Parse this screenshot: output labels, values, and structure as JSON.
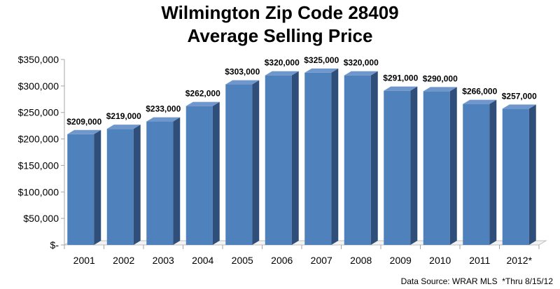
{
  "chart_data": {
    "type": "bar",
    "title": "Wilmington Zip Code 28409",
    "subtitle": "Average Selling Price",
    "xlabel": "",
    "ylabel": "",
    "categories": [
      "2001",
      "2002",
      "2003",
      "2004",
      "2005",
      "2006",
      "2007",
      "2008",
      "2009",
      "2010",
      "2011",
      "2012*"
    ],
    "values": [
      209000,
      219000,
      233000,
      262000,
      303000,
      320000,
      325000,
      320000,
      291000,
      290000,
      266000,
      257000
    ],
    "data_labels": [
      "$209,000",
      "$219,000",
      "$233,000",
      "$262,000",
      "$303,000",
      "$320,000",
      "$325,000",
      "$320,000",
      "$291,000",
      "$290,000",
      "$266,000",
      "$257,000"
    ],
    "ylim": [
      0,
      350000
    ],
    "yticks": [
      0,
      50000,
      100000,
      150000,
      200000,
      250000,
      300000,
      350000
    ],
    "ytick_labels": [
      "$-",
      "$50,000",
      "$100,000",
      "$150,000",
      "$200,000",
      "$250,000",
      "$300,000",
      "$350,000"
    ],
    "grid": false,
    "legend": "none",
    "style": "3d-column",
    "bar_color": "#4f81bd",
    "bar_side_color": "#2f4f7a",
    "bar_top_color": "#6f97cc"
  },
  "footer": {
    "source_note": "Data Source: WRAR MLS  *Thru 8/15/12"
  }
}
